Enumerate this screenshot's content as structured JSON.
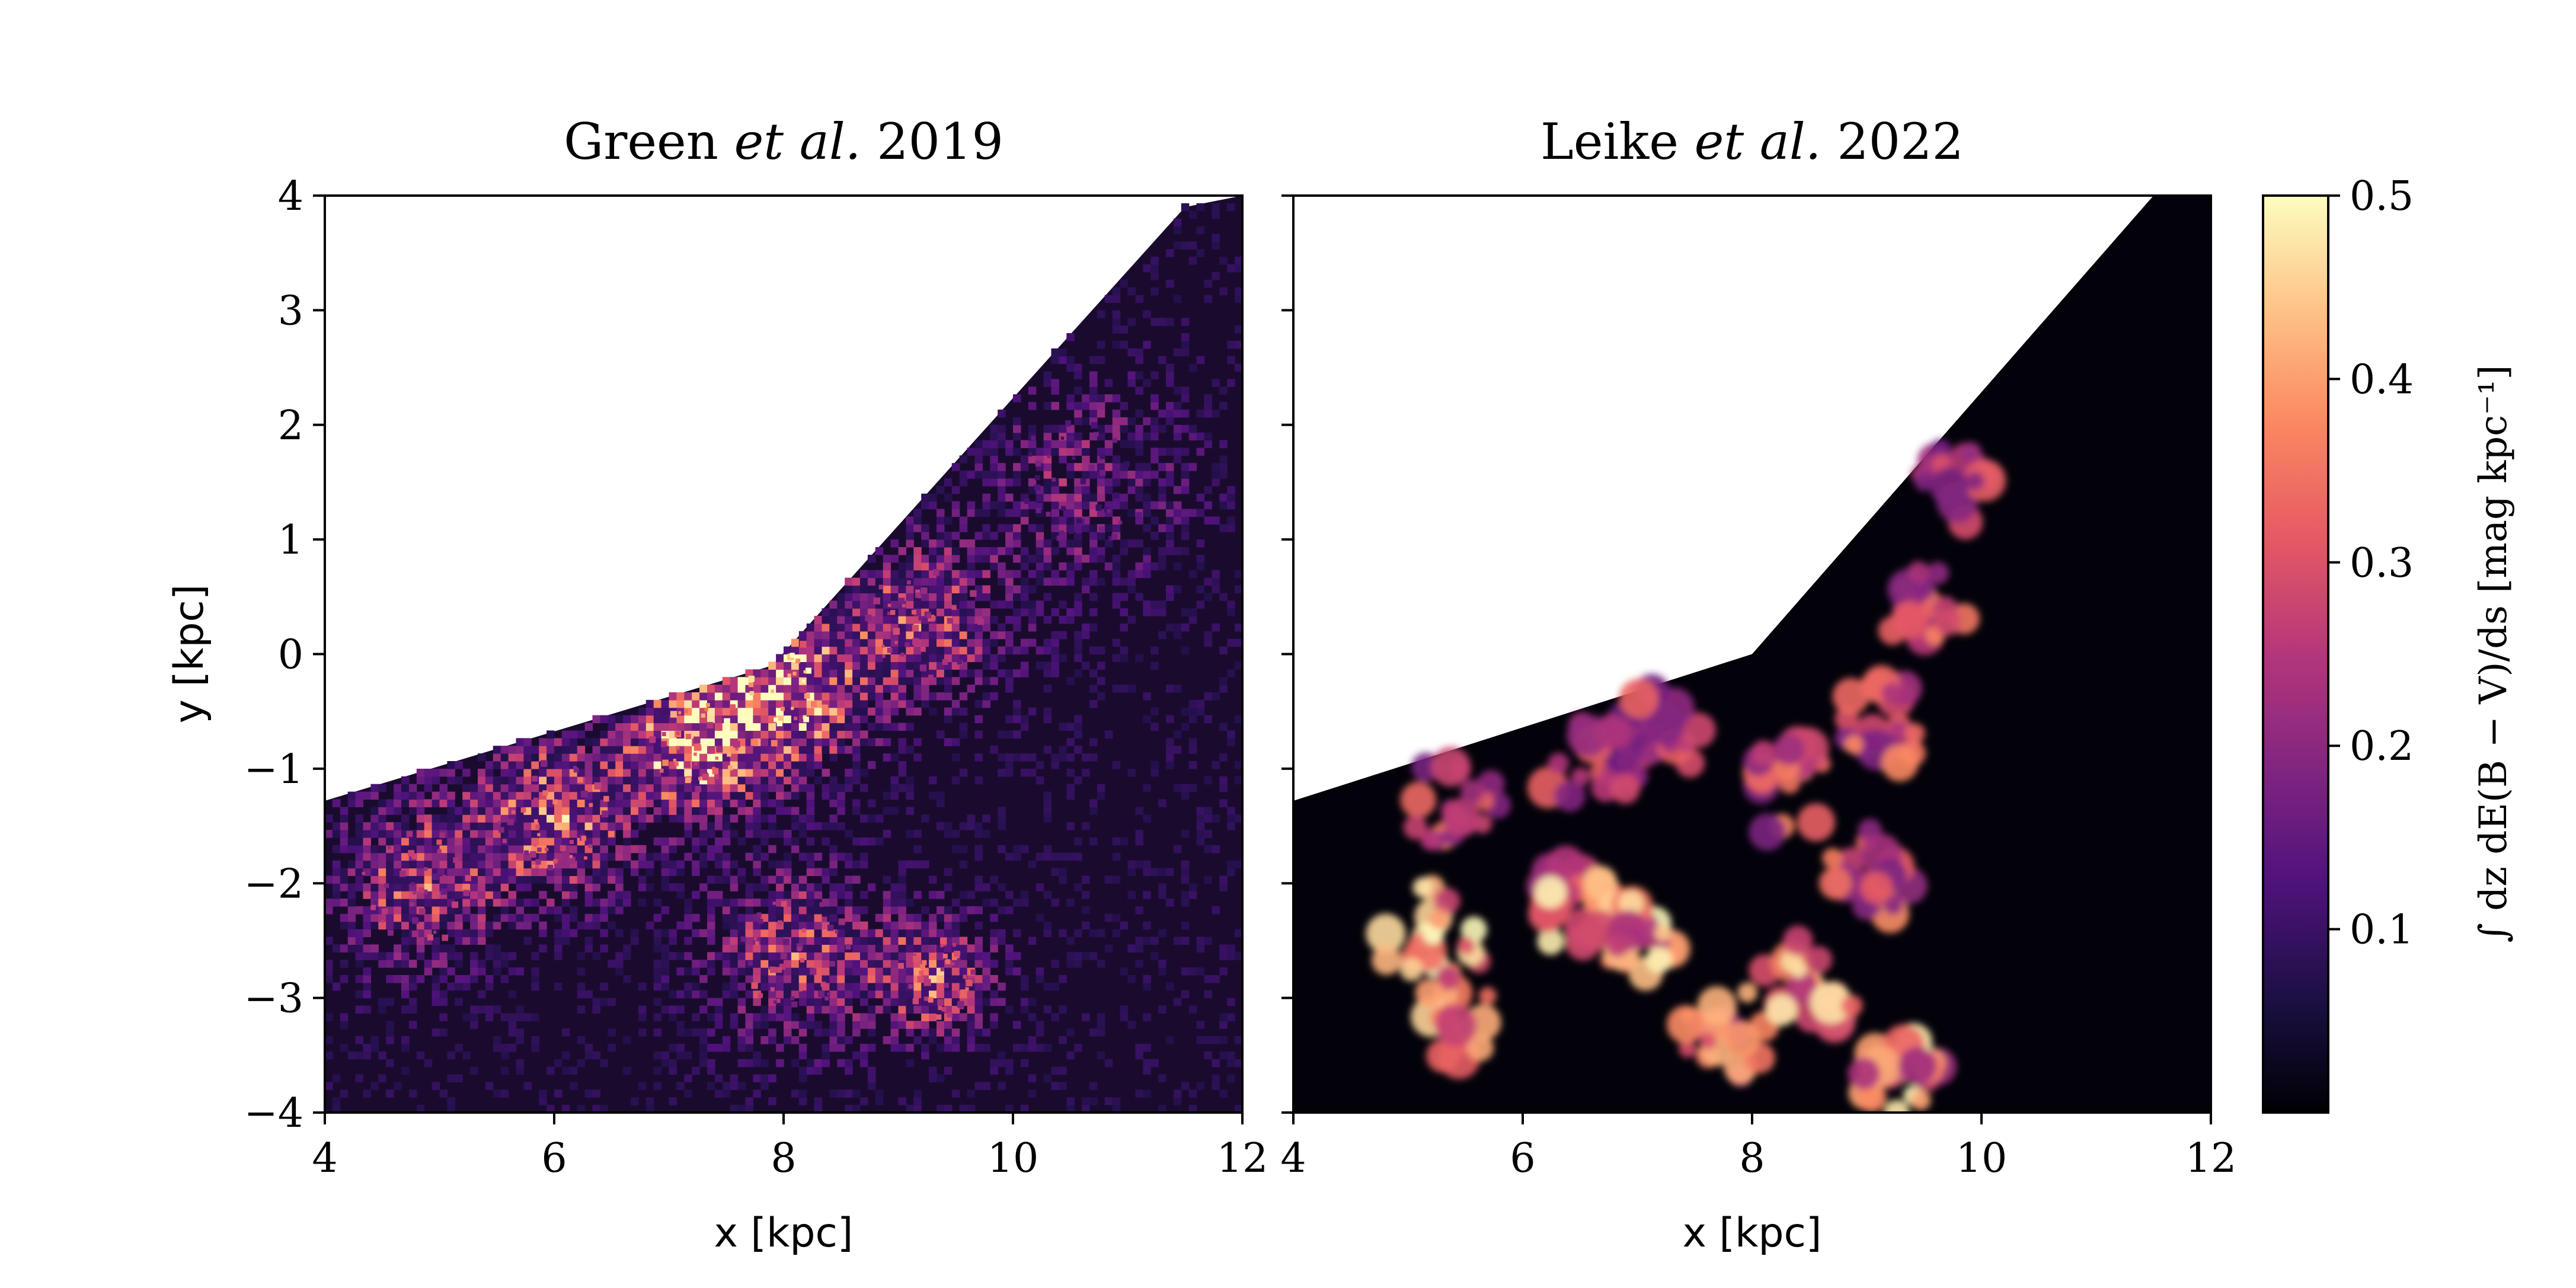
{
  "chart_data": [
    {
      "type": "heatmap",
      "title": "Green et al. 2019",
      "title_parts": {
        "left": "Green ",
        "italic": "et al.",
        "right": " 2019"
      },
      "xlabel": "x [kpc]",
      "ylabel": "y [kpc]",
      "xlim": [
        4,
        12
      ],
      "ylim": [
        -4,
        4
      ],
      "xticks": [
        4,
        6,
        8,
        10,
        12
      ],
      "yticks": [
        -4,
        -3,
        -2,
        -1,
        0,
        1,
        2,
        3,
        4
      ],
      "xtick_labels": [
        "4",
        "6",
        "8",
        "10",
        "12"
      ],
      "ytick_labels": [
        "−4",
        "−3",
        "−2",
        "−1",
        "0",
        "1",
        "2",
        "3",
        "4"
      ],
      "coverage_boundary": [
        [
          4,
          -1.28
        ],
        [
          7.9,
          -0.1
        ],
        [
          11.5,
          3.9
        ],
        [
          12,
          4
        ]
      ],
      "dust_features": [
        {
          "x": 7.9,
          "y": -0.3,
          "value": 0.45,
          "spread": 0.5
        },
        {
          "x": 7.2,
          "y": -0.8,
          "value": 0.35,
          "spread": 0.4
        },
        {
          "x": 6.0,
          "y": -1.4,
          "value": 0.3,
          "spread": 0.5
        },
        {
          "x": 4.8,
          "y": -2.0,
          "value": 0.25,
          "spread": 0.5
        },
        {
          "x": 9.3,
          "y": -2.8,
          "value": 0.3,
          "spread": 0.35
        },
        {
          "x": 9.2,
          "y": 0.3,
          "value": 0.25,
          "spread": 0.5
        },
        {
          "x": 8.1,
          "y": -2.6,
          "value": 0.25,
          "spread": 0.5
        },
        {
          "x": 10.6,
          "y": 1.5,
          "value": 0.15,
          "spread": 0.6
        }
      ]
    },
    {
      "type": "heatmap",
      "title": "Leike et al. 2022",
      "title_parts": {
        "left": "Leike ",
        "italic": "et al.",
        "right": " 2022"
      },
      "xlabel": "x [kpc]",
      "ylabel": "",
      "xlim": [
        4,
        12
      ],
      "ylim": [
        -4,
        4
      ],
      "xticks": [
        4,
        6,
        8,
        10,
        12
      ],
      "yticks": [
        -4,
        -3,
        -2,
        -1,
        0,
        1,
        2,
        3,
        4
      ],
      "xtick_labels": [
        "4",
        "6",
        "8",
        "10",
        "12"
      ],
      "coverage_boundary": [
        [
          4,
          -1.28
        ],
        [
          8.0,
          0.0
        ],
        [
          11.5,
          4.0
        ],
        [
          12,
          4
        ]
      ],
      "dust_features": [
        {
          "x": 5.2,
          "y": -2.5,
          "value": 0.5,
          "spread": 0.35
        },
        {
          "x": 5.5,
          "y": -3.2,
          "value": 0.45,
          "spread": 0.3
        },
        {
          "x": 5.4,
          "y": -1.3,
          "value": 0.35,
          "spread": 0.3
        },
        {
          "x": 6.4,
          "y": -2.2,
          "value": 0.45,
          "spread": 0.3
        },
        {
          "x": 7.0,
          "y": -2.5,
          "value": 0.45,
          "spread": 0.3
        },
        {
          "x": 7.8,
          "y": -3.3,
          "value": 0.4,
          "spread": 0.3
        },
        {
          "x": 8.5,
          "y": -2.9,
          "value": 0.45,
          "spread": 0.3
        },
        {
          "x": 9.2,
          "y": -3.6,
          "value": 0.45,
          "spread": 0.3
        },
        {
          "x": 8.3,
          "y": -1.2,
          "value": 0.35,
          "spread": 0.3
        },
        {
          "x": 9.1,
          "y": -0.6,
          "value": 0.35,
          "spread": 0.3
        },
        {
          "x": 9.5,
          "y": 0.5,
          "value": 0.35,
          "spread": 0.3
        },
        {
          "x": 9.7,
          "y": 1.5,
          "value": 0.3,
          "spread": 0.3
        },
        {
          "x": 7.3,
          "y": -0.6,
          "value": 0.3,
          "spread": 0.3
        },
        {
          "x": 9.0,
          "y": -1.9,
          "value": 0.35,
          "spread": 0.3
        },
        {
          "x": 6.6,
          "y": -1.0,
          "value": 0.3,
          "spread": 0.3
        }
      ]
    }
  ],
  "colorbar": {
    "colormap": "magma",
    "range": [
      0,
      0.5
    ],
    "ticks": [
      0.1,
      0.2,
      0.3,
      0.4,
      0.5
    ],
    "tick_labels": [
      "0.1",
      "0.2",
      "0.3",
      "0.4",
      "0.5"
    ],
    "label": "∫ dz dE(B − V)/ds [mag kpc⁻¹]"
  }
}
